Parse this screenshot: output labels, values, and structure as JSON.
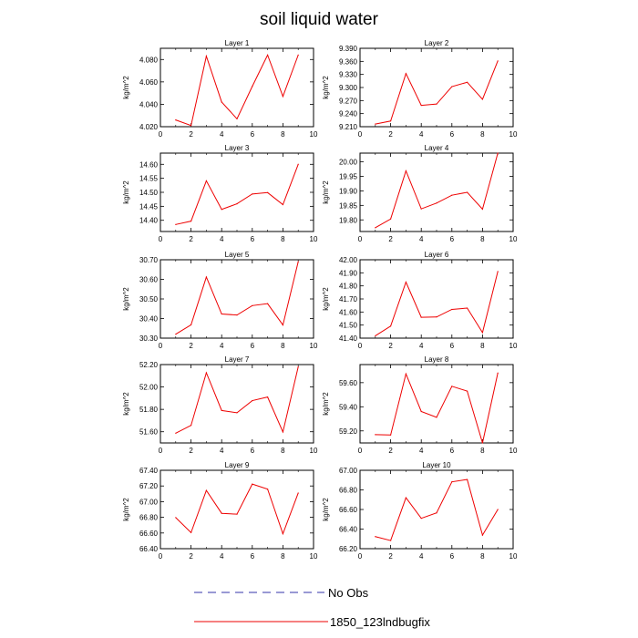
{
  "title": "soil liquid water",
  "legend": {
    "items": [
      {
        "label": "No Obs",
        "color": "#3333aa",
        "dash": true
      },
      {
        "label": "1850_123lndbugfix",
        "color": "#ee0000",
        "dash": false
      }
    ]
  },
  "chart_data": [
    {
      "type": "line",
      "title": "Layer 1",
      "ylabel": "kg/m^2",
      "xlim": [
        0,
        10
      ],
      "ylim": [
        4.02,
        4.09
      ],
      "xticks": [
        "0",
        "2",
        "4",
        "6",
        "8",
        "10"
      ],
      "yticks": [
        "4.020",
        "4.040",
        "4.060",
        "4.080"
      ],
      "series": [
        {
          "x": [
            1,
            2,
            3,
            4,
            5,
            6,
            7,
            8,
            9
          ],
          "values": [
            4.026,
            4.021,
            4.083,
            4.042,
            4.027,
            4.056,
            4.084,
            4.047,
            4.084
          ]
        }
      ]
    },
    {
      "type": "line",
      "title": "Layer 2",
      "ylabel": "kg/m^2",
      "xlim": [
        0,
        10
      ],
      "ylim": [
        9.21,
        9.39
      ],
      "xticks": [
        "0",
        "2",
        "4",
        "6",
        "8",
        "10"
      ],
      "yticks": [
        "9.210",
        "9.240",
        "9.270",
        "9.300",
        "9.330",
        "9.360",
        "9.390"
      ],
      "series": [
        {
          "x": [
            1,
            2,
            3,
            4,
            5,
            6,
            7,
            8,
            9
          ],
          "values": [
            9.216,
            9.223,
            9.332,
            9.259,
            9.262,
            9.302,
            9.312,
            9.273,
            9.361
          ]
        }
      ]
    },
    {
      "type": "line",
      "title": "Layer 3",
      "ylabel": "kg/m^2",
      "xlim": [
        0,
        10
      ],
      "ylim": [
        14.36,
        14.64
      ],
      "xticks": [
        "0",
        "2",
        "4",
        "6",
        "8",
        "10"
      ],
      "yticks": [
        "14.40",
        "14.45",
        "14.50",
        "14.55",
        "14.60"
      ],
      "series": [
        {
          "x": [
            1,
            2,
            3,
            4,
            5,
            6,
            7,
            8,
            9
          ],
          "values": [
            14.385,
            14.397,
            14.541,
            14.439,
            14.459,
            14.494,
            14.499,
            14.456,
            14.6
          ]
        }
      ]
    },
    {
      "type": "line",
      "title": "Layer 4",
      "ylabel": "kg/m^2",
      "xlim": [
        0,
        10
      ],
      "ylim": [
        19.76,
        20.03
      ],
      "xticks": [
        "0",
        "2",
        "4",
        "6",
        "8",
        "10"
      ],
      "yticks": [
        "19.80",
        "19.85",
        "19.90",
        "19.95",
        "20.00"
      ],
      "series": [
        {
          "x": [
            1,
            2,
            3,
            4,
            5,
            6,
            7,
            8,
            9
          ],
          "values": [
            19.773,
            19.803,
            19.969,
            19.838,
            19.858,
            19.885,
            19.895,
            19.837,
            20.03
          ]
        }
      ]
    },
    {
      "type": "line",
      "title": "Layer 5",
      "ylabel": "kg/m^2",
      "xlim": [
        0,
        10
      ],
      "ylim": [
        30.3,
        30.7
      ],
      "xticks": [
        "0",
        "2",
        "4",
        "6",
        "8",
        "10"
      ],
      "yticks": [
        "30.30",
        "30.40",
        "30.50",
        "30.60",
        "30.70"
      ],
      "series": [
        {
          "x": [
            1,
            2,
            3,
            4,
            5,
            6,
            7,
            8,
            9
          ],
          "values": [
            30.32,
            30.368,
            30.612,
            30.423,
            30.418,
            30.466,
            30.476,
            30.367,
            30.69
          ]
        }
      ]
    },
    {
      "type": "line",
      "title": "Layer 6",
      "ylabel": "kg/m^2",
      "xlim": [
        0,
        10
      ],
      "ylim": [
        41.4,
        42.0
      ],
      "xticks": [
        "0",
        "2",
        "4",
        "6",
        "8",
        "10"
      ],
      "yticks": [
        "41.40",
        "41.50",
        "41.60",
        "41.70",
        "41.80",
        "41.90",
        "42.00"
      ],
      "series": [
        {
          "x": [
            1,
            2,
            3,
            4,
            5,
            6,
            7,
            8,
            9
          ],
          "values": [
            41.418,
            41.492,
            41.829,
            41.56,
            41.562,
            41.62,
            41.63,
            41.443,
            41.91
          ]
        }
      ]
    },
    {
      "type": "line",
      "title": "Layer 7",
      "ylabel": "kg/m^2",
      "xlim": [
        0,
        10
      ],
      "ylim": [
        51.5,
        52.2
      ],
      "xticks": [
        "0",
        "2",
        "4",
        "6",
        "8",
        "10"
      ],
      "yticks": [
        "51.60",
        "51.80",
        "52.00",
        "52.20"
      ],
      "series": [
        {
          "x": [
            1,
            2,
            3,
            4,
            5,
            6,
            7,
            8,
            9
          ],
          "values": [
            51.587,
            51.657,
            52.127,
            51.79,
            51.77,
            51.878,
            51.91,
            51.598,
            52.18
          ]
        }
      ]
    },
    {
      "type": "line",
      "title": "Layer 8",
      "ylabel": "kg/m^2",
      "xlim": [
        0,
        10
      ],
      "ylim": [
        59.1,
        59.75
      ],
      "xticks": [
        "0",
        "2",
        "4",
        "6",
        "8",
        "10"
      ],
      "yticks": [
        "59.20",
        "59.40",
        "59.60"
      ],
      "series": [
        {
          "x": [
            1,
            2,
            3,
            4,
            5,
            6,
            7,
            8,
            9
          ],
          "values": [
            59.169,
            59.166,
            59.673,
            59.361,
            59.313,
            59.57,
            59.53,
            59.1,
            59.68
          ]
        }
      ]
    },
    {
      "type": "line",
      "title": "Layer 9",
      "ylabel": "kg/m^2",
      "xlim": [
        0,
        10
      ],
      "ylim": [
        66.4,
        67.4
      ],
      "xticks": [
        "0",
        "2",
        "4",
        "6",
        "8",
        "10"
      ],
      "yticks": [
        "66.40",
        "66.60",
        "66.80",
        "67.00",
        "67.20",
        "67.40"
      ],
      "series": [
        {
          "x": [
            1,
            2,
            3,
            4,
            5,
            6,
            7,
            8,
            9
          ],
          "values": [
            66.797,
            66.605,
            67.143,
            66.851,
            66.84,
            67.224,
            67.16,
            66.59,
            67.11
          ]
        }
      ]
    },
    {
      "type": "line",
      "title": "Layer 10",
      "ylabel": "kg/m^2",
      "xlim": [
        0,
        10
      ],
      "ylim": [
        66.2,
        67.0
      ],
      "xticks": [
        "0",
        "2",
        "4",
        "6",
        "8",
        "10"
      ],
      "yticks": [
        "66.20",
        "66.40",
        "66.60",
        "66.80",
        "67.00"
      ],
      "series": [
        {
          "x": [
            1,
            2,
            3,
            4,
            5,
            6,
            7,
            8,
            9
          ],
          "values": [
            66.323,
            66.283,
            66.72,
            66.51,
            66.565,
            66.882,
            66.906,
            66.338,
            66.6
          ]
        }
      ]
    }
  ]
}
